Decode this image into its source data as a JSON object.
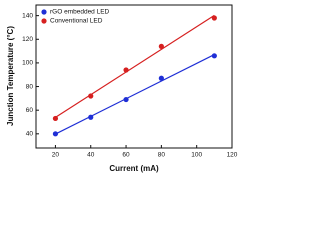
{
  "chart_data": {
    "type": "scatter",
    "x_label": "Current (mA)",
    "y_label": "Junction Temperature (°C)",
    "x": [
      20,
      40,
      60,
      80,
      110
    ],
    "series": [
      {
        "name": "rGO embedded LED",
        "color": "#1f2fd6",
        "values": [
          40,
          54,
          69,
          87,
          106
        ]
      },
      {
        "name": "Conventional LED",
        "color": "#d62020",
        "values": [
          53,
          72,
          94,
          114,
          138
        ]
      }
    ],
    "xlim": [
      9,
      120
    ],
    "xticks": [
      20,
      40,
      60,
      80,
      100,
      120
    ],
    "ylim": [
      28,
      149
    ],
    "yticks": [
      40,
      60,
      80,
      100,
      120,
      140
    ],
    "fit_lines": true,
    "legend": "top-left"
  }
}
